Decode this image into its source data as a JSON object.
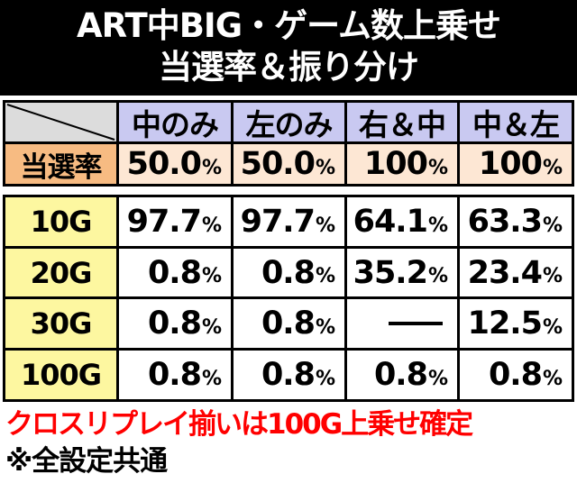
{
  "title": {
    "line1": "ART中BIG・ゲーム数上乗せ",
    "line2": "当選率＆振り分け"
  },
  "columns": [
    "中のみ",
    "左のみ",
    "右＆中",
    "中＆左"
  ],
  "rate_row": {
    "label": "当選率",
    "values": [
      {
        "num": "50.0",
        "unit": "%"
      },
      {
        "num": "50.0",
        "unit": "%"
      },
      {
        "num": "100",
        "unit": "%"
      },
      {
        "num": "100",
        "unit": "%"
      }
    ]
  },
  "rows": [
    {
      "label": "10G",
      "values": [
        {
          "num": "97.7",
          "unit": "%"
        },
        {
          "num": "97.7",
          "unit": "%"
        },
        {
          "num": "64.1",
          "unit": "%"
        },
        {
          "num": "63.3",
          "unit": "%"
        }
      ]
    },
    {
      "label": "20G",
      "values": [
        {
          "num": "0.8",
          "unit": "%"
        },
        {
          "num": "0.8",
          "unit": "%"
        },
        {
          "num": "35.2",
          "unit": "%"
        },
        {
          "num": "23.4",
          "unit": "%"
        }
      ]
    },
    {
      "label": "30G",
      "values": [
        {
          "num": "0.8",
          "unit": "%"
        },
        {
          "num": "0.8",
          "unit": "%"
        },
        {
          "dash": true
        },
        {
          "num": "12.5",
          "unit": "%"
        }
      ]
    },
    {
      "label": "100G",
      "values": [
        {
          "num": "0.8",
          "unit": "%"
        },
        {
          "num": "0.8",
          "unit": "%"
        },
        {
          "num": "0.8",
          "unit": "%"
        },
        {
          "num": "0.8",
          "unit": "%"
        }
      ]
    }
  ],
  "notes": {
    "red": "クロスリプレイ揃いは100G上乗せ確定",
    "black": "※全設定共通"
  },
  "colors": {
    "header_bg": "#000000",
    "column_header": "#c9c9f1",
    "rate_label": "#f7bb82",
    "rate_cell": "#fde7d4",
    "game_label": "#fdf7a0",
    "note_red": "#ff0000"
  }
}
